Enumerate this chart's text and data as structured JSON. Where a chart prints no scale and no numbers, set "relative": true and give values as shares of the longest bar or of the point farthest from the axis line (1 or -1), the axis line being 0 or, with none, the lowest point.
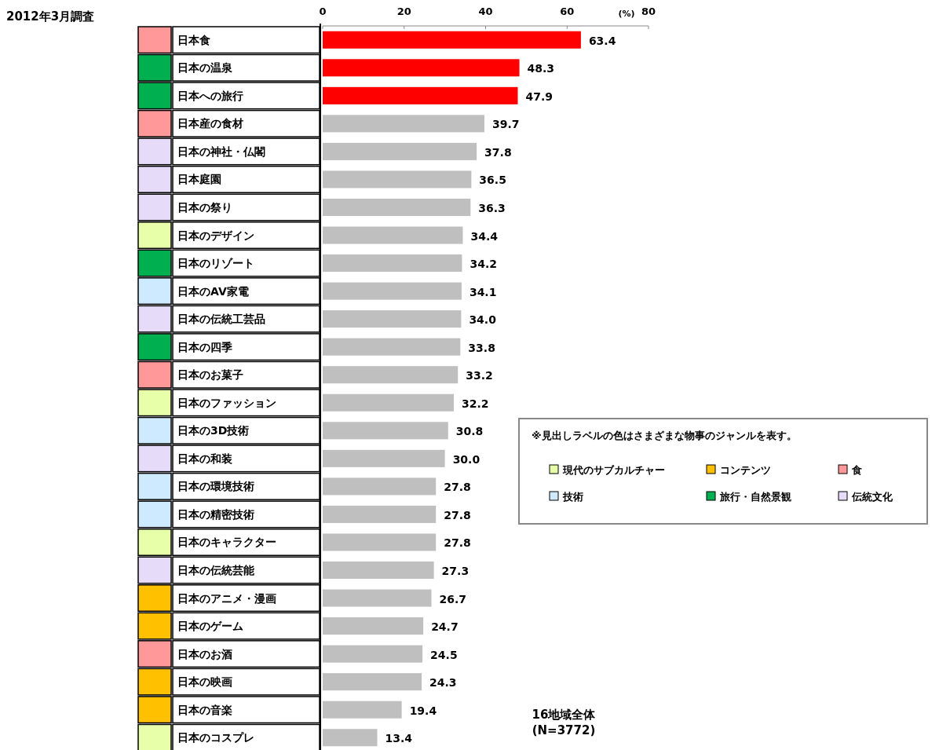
{
  "chart_data": [
    {
      "type": "bar",
      "orientation": "horizontal",
      "xlabel": "(%)",
      "categories": [
        "日本食",
        "日本の温泉",
        "日本への旅行",
        "日本産の食材",
        "日本の神社・仏閣",
        "日本庭園",
        "日本の祭り",
        "日本のデザイン",
        "日本のリゾート",
        "日本のAV家電",
        "日本の伝統工芸品",
        "日本の四季",
        "日本のお菓子",
        "日本のファッション",
        "日本の3D技術",
        "日本の和装",
        "日本の環境技術",
        "日本の精密技術",
        "日本のキャラクター",
        "日本の伝統芸能",
        "日本のアニメ・漫画",
        "日本のゲーム",
        "日本のお酒",
        "日本の映画",
        "日本の音楽",
        "日本のコスプレ"
      ],
      "values": [
        63.4,
        48.3,
        47.9,
        39.7,
        37.8,
        36.5,
        36.3,
        34.4,
        34.2,
        34.1,
        34.0,
        33.8,
        33.2,
        32.2,
        30.8,
        30.0,
        27.8,
        27.8,
        27.8,
        27.3,
        26.7,
        24.7,
        24.5,
        24.3,
        19.4,
        13.4
      ],
      "value_labels": [
        "63.4",
        "48.3",
        "47.9",
        "39.7",
        "37.8",
        "36.5",
        "36.3",
        "34.4",
        "34.2",
        "34.1",
        "34.0",
        "33.8",
        "33.2",
        "32.2",
        "30.8",
        "30.0",
        "27.8",
        "27.8",
        "27.8",
        "27.3",
        "26.7",
        "24.7",
        "24.5",
        "24.3",
        "19.4",
        "13.4"
      ],
      "colors": [
        "#ff0000",
        "#ff0000",
        "#ff0000",
        "#bfbfbf",
        "#bfbfbf",
        "#bfbfbf",
        "#bfbfbf",
        "#bfbfbf",
        "#bfbfbf",
        "#bfbfbf",
        "#bfbfbf",
        "#bfbfbf",
        "#bfbfbf",
        "#bfbfbf",
        "#bfbfbf",
        "#bfbfbf",
        "#bfbfbf",
        "#bfbfbf",
        "#bfbfbf",
        "#bfbfbf",
        "#bfbfbf",
        "#bfbfbf",
        "#bfbfbf",
        "#bfbfbf",
        "#bfbfbf",
        "#bfbfbf"
      ],
      "xlim": [
        0,
        80
      ],
      "xticks": [
        0,
        20,
        40,
        60,
        80
      ],
      "grid": false,
      "annotations": [
        "2012年3月調査",
        "16地域全体\n(N=3772)"
      ]
    },
    {
      "type": "bar",
      "orientation": "horizontal",
      "relative": true,
      "legend": "right",
      "legend_title": "※見出しラベルの色はさまざまな物事のジャンルを表す。",
      "categories": [
        null,
        null,
        null,
        null,
        null,
        null,
        null,
        null,
        null,
        null,
        null,
        null,
        null,
        null,
        null,
        null,
        null,
        null,
        null,
        null,
        null,
        null,
        null,
        null,
        null,
        null
      ],
      "series": [
        {
          "name": "現代のサブカルチャー",
          "color": "#e6ffa8",
          "values": [
            null,
            null,
            null,
            null,
            null,
            null,
            null,
            1,
            null,
            null,
            null,
            null,
            null,
            1,
            null,
            null,
            null,
            null,
            1,
            null,
            null,
            null,
            null,
            null,
            null,
            1
          ]
        },
        {
          "name": "コンテンツ",
          "color": "#ffc000",
          "values": [
            null,
            null,
            null,
            null,
            null,
            null,
            null,
            null,
            null,
            null,
            null,
            null,
            null,
            null,
            null,
            null,
            null,
            null,
            null,
            null,
            1,
            1,
            null,
            1,
            1,
            null
          ]
        },
        {
          "name": "食",
          "color": "#ff9999",
          "values": [
            1,
            null,
            null,
            1,
            null,
            null,
            null,
            null,
            null,
            null,
            null,
            null,
            1,
            null,
            null,
            null,
            null,
            null,
            null,
            null,
            null,
            null,
            1,
            null,
            null,
            null
          ]
        },
        {
          "name": "技術",
          "color": "#cdeaff",
          "values": [
            null,
            null,
            null,
            null,
            null,
            null,
            null,
            null,
            null,
            1,
            null,
            null,
            null,
            null,
            1,
            null,
            1,
            1,
            null,
            null,
            null,
            null,
            null,
            null,
            null,
            null
          ]
        },
        {
          "name": "旅行・自然景観",
          "color": "#00b050",
          "values": [
            null,
            1,
            1,
            null,
            null,
            null,
            null,
            null,
            1,
            null,
            null,
            1,
            null,
            null,
            null,
            null,
            null,
            null,
            null,
            null,
            null,
            null,
            null,
            null,
            null,
            null
          ]
        },
        {
          "name": "伝統文化",
          "color": "#e6dcfa",
          "values": [
            null,
            null,
            null,
            null,
            1,
            1,
            1,
            null,
            null,
            null,
            1,
            null,
            null,
            null,
            null,
            1,
            null,
            null,
            null,
            1,
            null,
            null,
            null,
            null,
            null,
            null
          ]
        }
      ]
    }
  ]
}
